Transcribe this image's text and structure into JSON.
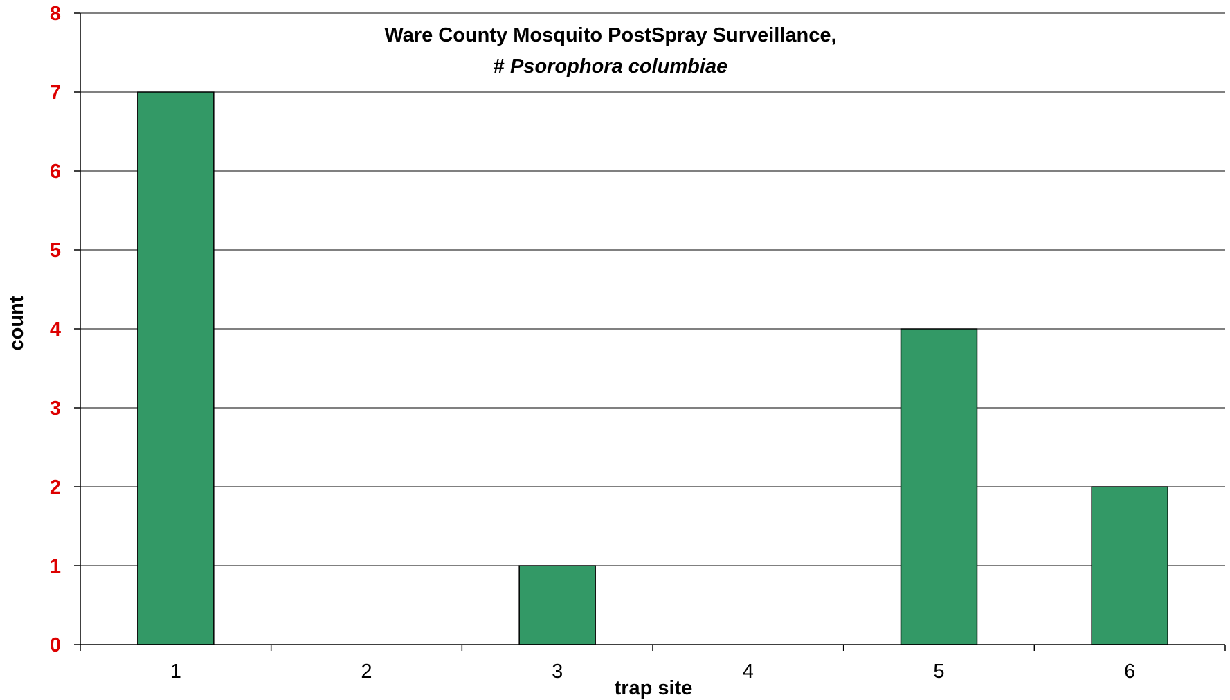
{
  "chart_data": {
    "type": "bar",
    "title_line1": "Ware County Mosquito PostSpray Surveillance,",
    "title_line2_prefix": "# ",
    "title_line2_species": "Psorophora columbiae",
    "xlabel": "trap site",
    "ylabel": "count",
    "categories": [
      "1",
      "2",
      "3",
      "4",
      "5",
      "6"
    ],
    "values": [
      7,
      0,
      1,
      0,
      4,
      2
    ],
    "ylim": [
      0,
      8
    ],
    "yticks": [
      "0",
      "1",
      "2",
      "3",
      "4",
      "5",
      "6",
      "7",
      "8"
    ],
    "grid": true,
    "legend": "none",
    "colors": {
      "bar_fill": "#339966",
      "bar_stroke": "#000000",
      "ytick_label": "#dd0000",
      "gridline": "#000000"
    }
  }
}
